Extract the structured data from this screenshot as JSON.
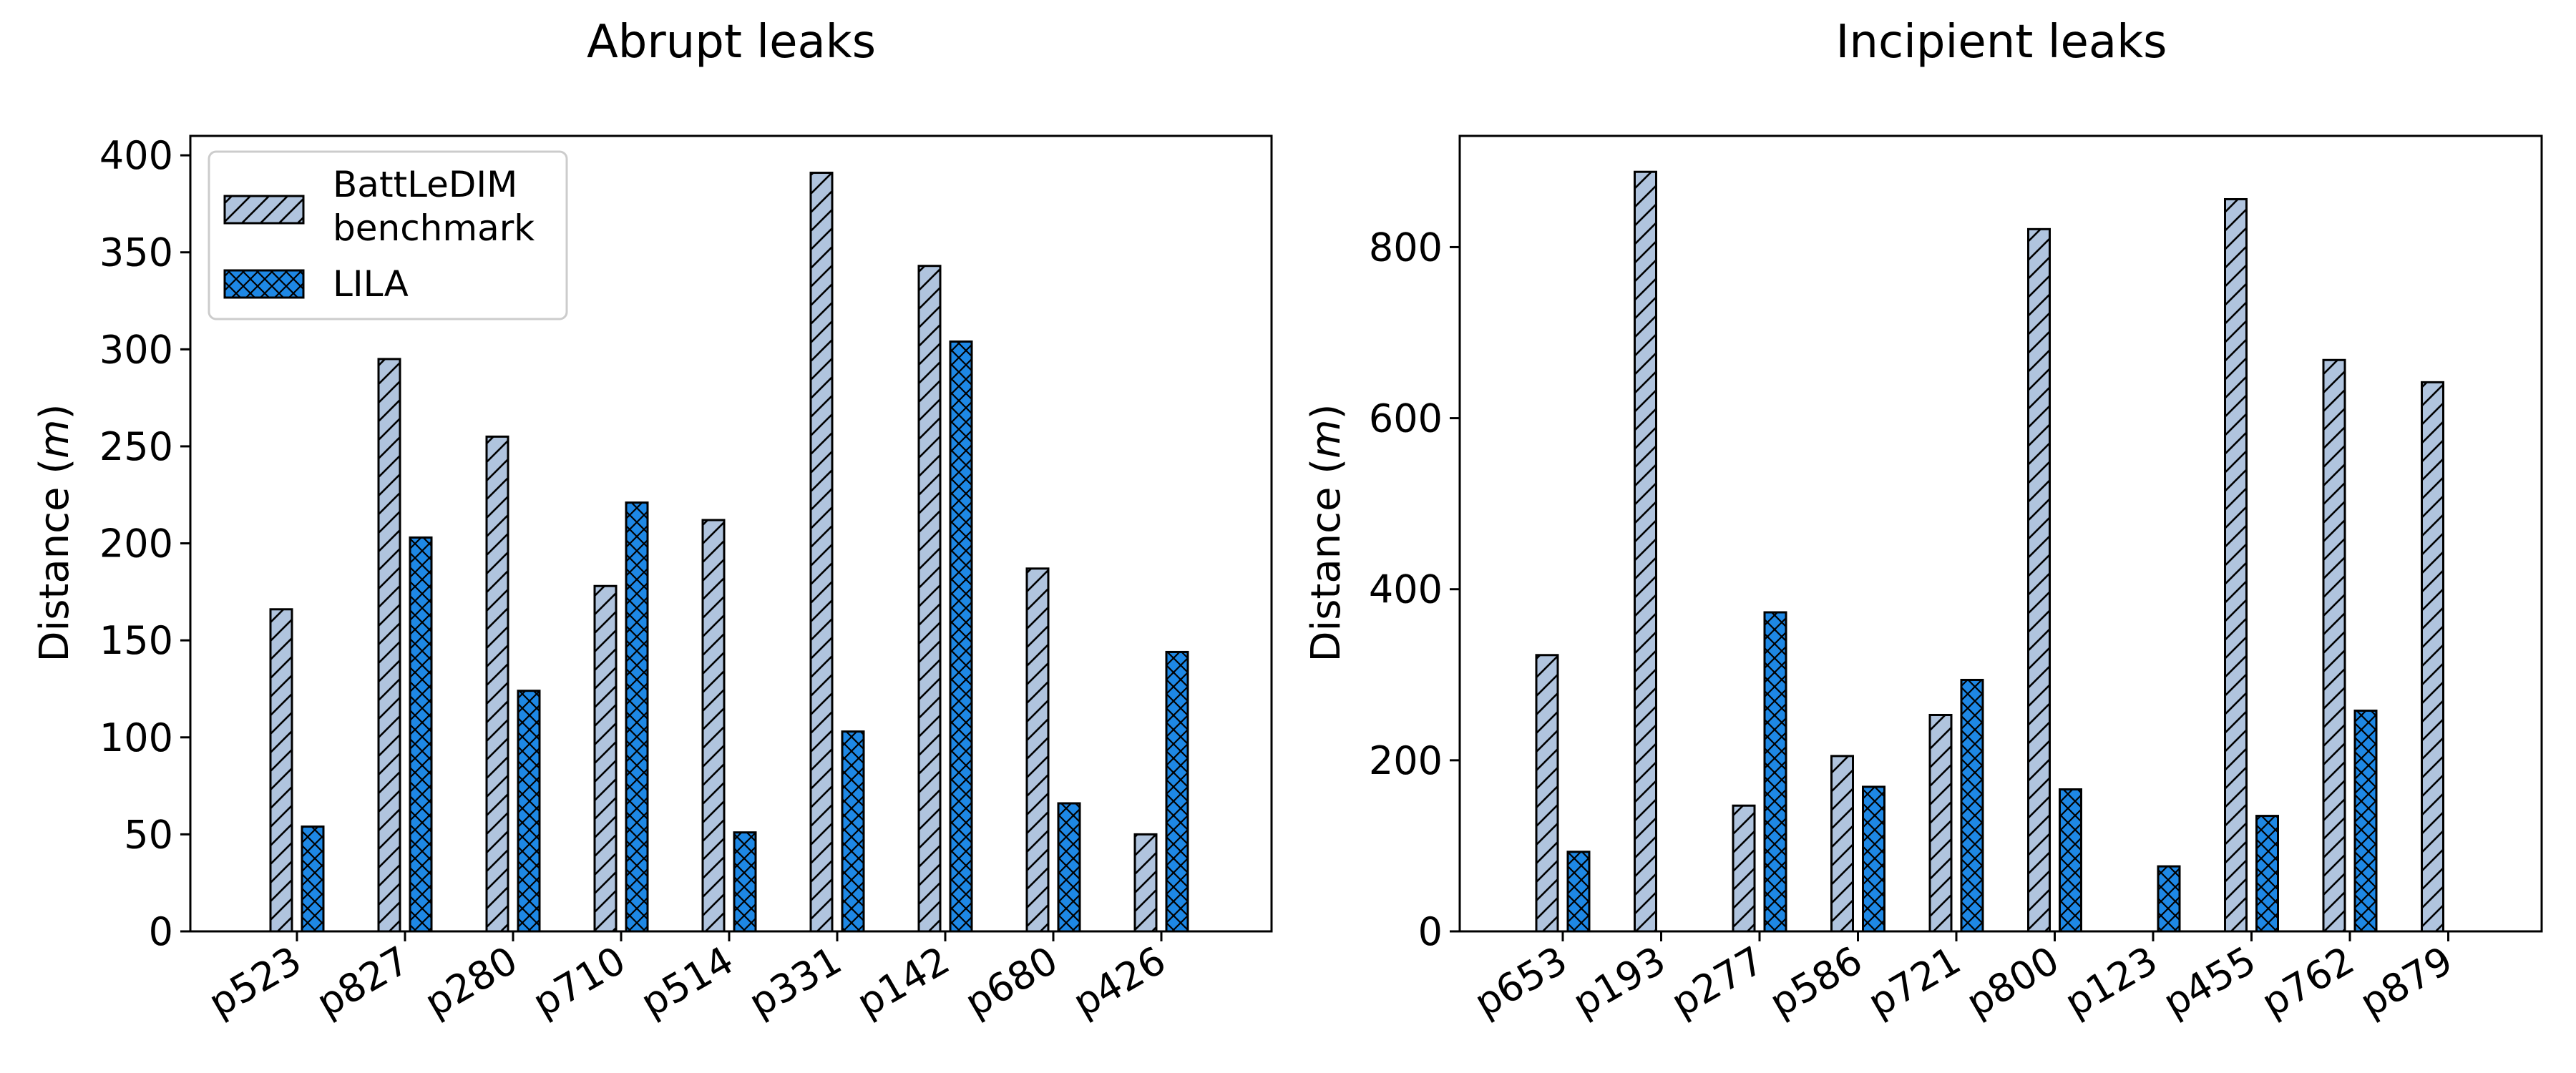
{
  "colors": {
    "benchmark": "#b0c4de",
    "lila": "#1e88e5",
    "edge": "#000000"
  },
  "chart_data": [
    {
      "type": "bar",
      "title": "Abrupt leaks",
      "ylabel": "Distance (m)",
      "ylabel_prefix": "Distance (",
      "ylabel_unit": "m",
      "ylabel_suffix": ")",
      "categories": [
        "p523",
        "p827",
        "p280",
        "p710",
        "p514",
        "p331",
        "p142",
        "p680",
        "p426"
      ],
      "ylim": [
        0,
        410
      ],
      "yticks": [
        0,
        50,
        100,
        150,
        200,
        250,
        300,
        350,
        400
      ],
      "legend": "top-left",
      "grid": false,
      "series": [
        {
          "name": "BattLeDIM\nbenchmark",
          "name_line1": "BattLeDIM",
          "name_line2": "benchmark",
          "pattern": "diagonal",
          "values": [
            166,
            295,
            255,
            178,
            212,
            391,
            343,
            187,
            50
          ]
        },
        {
          "name": "LILA",
          "pattern": "crosshatch",
          "values": [
            54,
            203,
            124,
            221,
            51,
            103,
            304,
            66,
            144
          ]
        }
      ]
    },
    {
      "type": "bar",
      "title": "Incipient leaks",
      "ylabel": "Distance (m)",
      "ylabel_prefix": "Distance (",
      "ylabel_unit": "m",
      "ylabel_suffix": ")",
      "categories": [
        "p653",
        "p193",
        "p277",
        "p586",
        "p721",
        "p800",
        "p123",
        "p455",
        "p762",
        "p879"
      ],
      "ylim": [
        0,
        930
      ],
      "yticks": [
        0,
        200,
        400,
        600,
        800
      ],
      "grid": false,
      "series": [
        {
          "name": "BattLeDIM benchmark",
          "pattern": "diagonal",
          "values": [
            323,
            888,
            147,
            205,
            253,
            821,
            0,
            856,
            668,
            642
          ]
        },
        {
          "name": "LILA",
          "pattern": "crosshatch",
          "values": [
            93,
            0,
            373,
            169,
            294,
            166,
            76,
            135,
            258,
            0
          ]
        }
      ]
    }
  ]
}
